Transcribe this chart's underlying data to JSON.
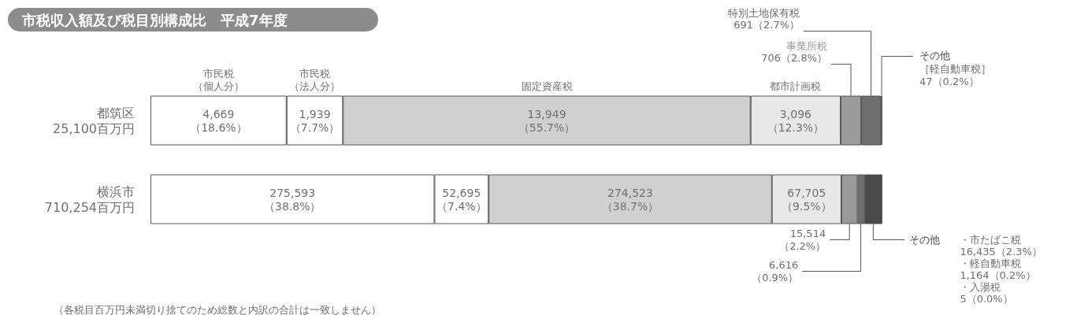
{
  "chart_data": {
    "type": "bar",
    "orientation": "horizontal",
    "stacked": true,
    "title": "市税収入額及び税目別構成比　平成7年度",
    "categories": [
      "都筑区\n25,100百万円",
      "横浜市\n710,254百万円"
    ],
    "series": [
      {
        "name": "市民税（個人分）",
        "color": "#ffffff",
        "values": [
          18.6,
          38.8
        ],
        "value_labels": [
          "4,669\n（18.6%）",
          "275,593\n（38.8%）"
        ]
      },
      {
        "name": "市民税（法人分）",
        "color": "#ffffff",
        "values": [
          7.7,
          7.4
        ],
        "value_labels": [
          "1,939\n（7.7%）",
          "52,695\n（7.4%）"
        ]
      },
      {
        "name": "固定資産税",
        "color": "#d0d0d0",
        "values": [
          55.7,
          38.7
        ],
        "value_labels": [
          "13,949\n（55.7%）",
          "274,523\n（38.7%）"
        ]
      },
      {
        "name": "都市計画税",
        "color": "#e8e8e8",
        "values": [
          12.3,
          9.5
        ],
        "value_labels": [
          "3,096\n（12.3%）",
          "67,705\n（9.5%）"
        ]
      },
      {
        "name": "事業所税",
        "color": "#9a9a9a",
        "values": [
          2.8,
          2.2
        ],
        "value_labels": [
          "706（2.8%）",
          "15,514\n（2.2%）"
        ]
      },
      {
        "name": "特別土地保有税",
        "color": "#6e6e6e",
        "values": [
          2.7,
          0.9
        ],
        "value_labels": [
          "691（2.7%）",
          "6,616\n（0.9%）"
        ]
      },
      {
        "name": "その他",
        "color": "#4a4a4a",
        "values": [
          0.2,
          2.5
        ],
        "value_labels": [
          "［軽自動車税］\n47（0.2%）",
          null
        ]
      }
    ],
    "annotations": [
      "（各税目百万円未満切り捨てのため総数と内訳の合計は一致しません）",
      "・市たばこ税16,435（2.3%）・軽自動車税1,164（0.2%）・入湯税5（0.0%）"
    ],
    "legend": false
  }
}
